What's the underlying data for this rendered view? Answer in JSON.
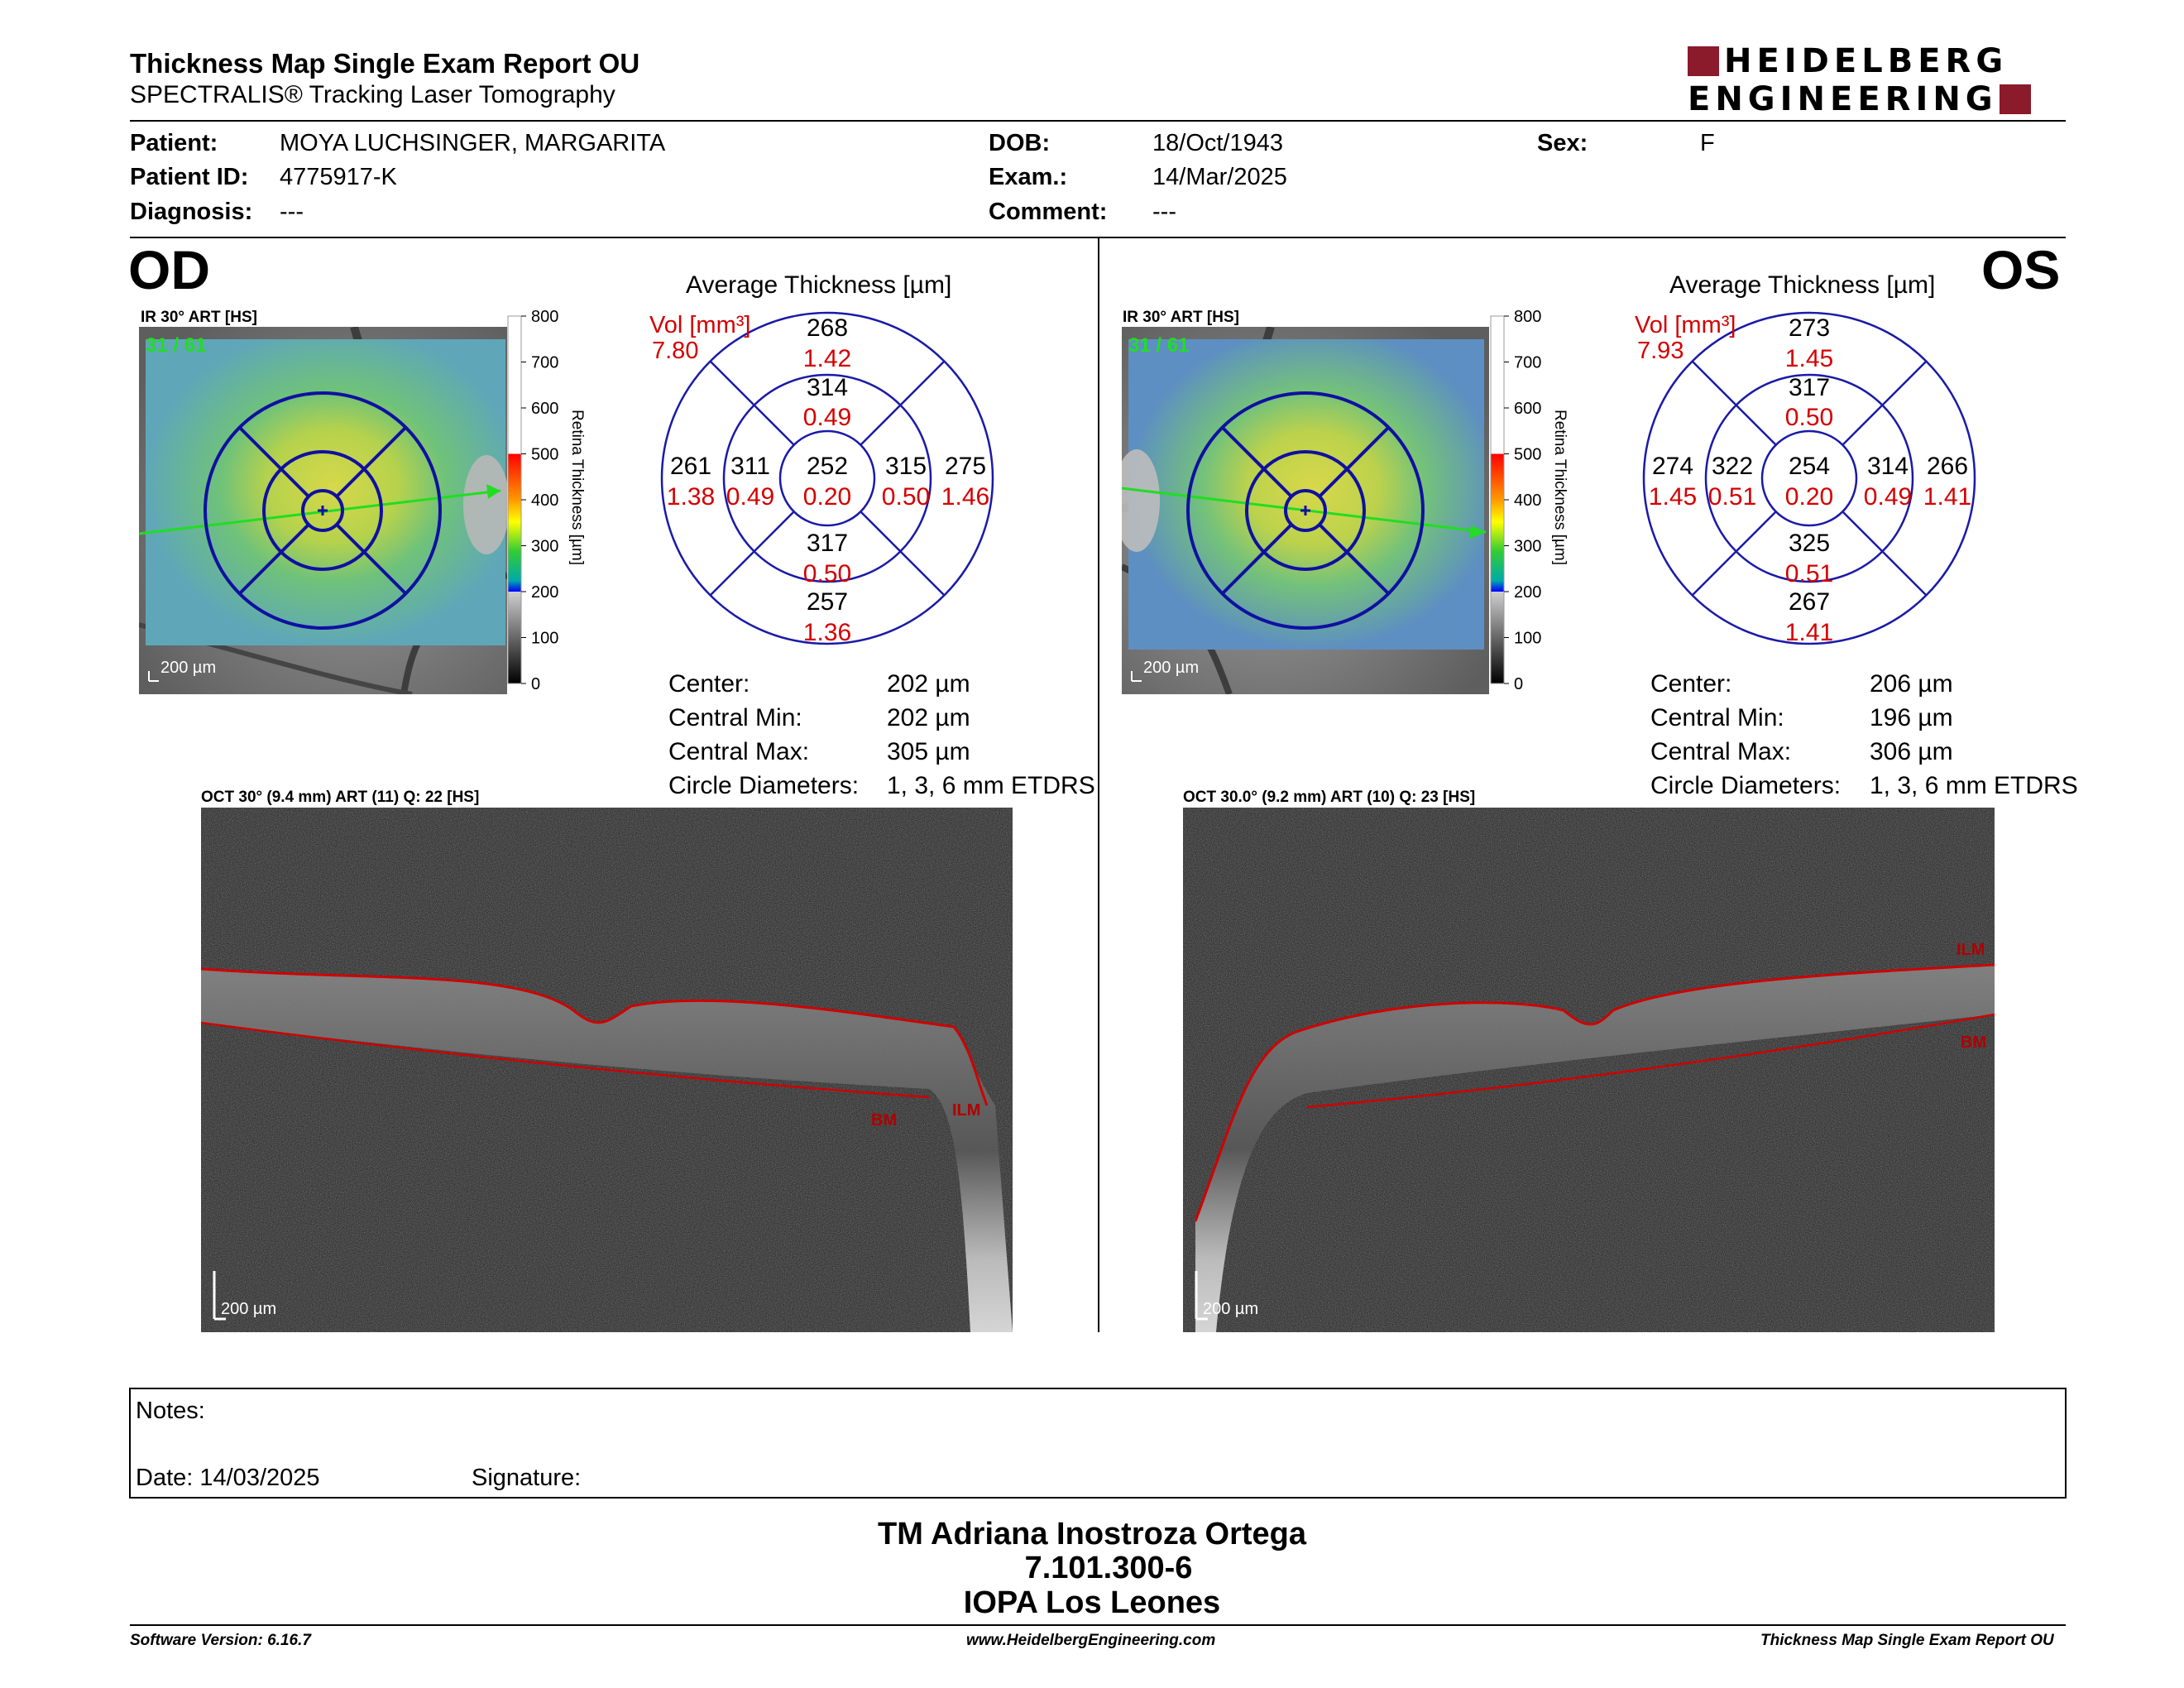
{
  "header": {
    "title": "Thickness Map Single Exam Report OU",
    "subtitle": "SPECTRALIS® Tracking Laser Tomography",
    "logo_line1": "HEIDELBERG",
    "logo_line2": "ENGINEERING",
    "brand_color": "#8b1a2b"
  },
  "patient": {
    "patient_label": "Patient:",
    "patient_value": "MOYA LUCHSINGER, MARGARITA",
    "id_label": "Patient ID:",
    "id_value": "4775917-K",
    "diagnosis_label": "Diagnosis:",
    "diagnosis_value": "---",
    "dob_label": "DOB:",
    "dob_value": "18/Oct/1943",
    "exam_label": "Exam.:",
    "exam_value": "14/Mar/2025",
    "comment_label": "Comment:",
    "comment_value": "---",
    "sex_label": "Sex:",
    "sex_value": "F"
  },
  "colorbar": {
    "ticks": [
      "800",
      "700",
      "600",
      "500",
      "400",
      "300",
      "200",
      "100",
      "0"
    ],
    "label": "Retina Thickness [µm]"
  },
  "od": {
    "eye": "OD",
    "ir_caption": "IR 30° ART [HS]",
    "ir_quality": "31 / 61",
    "ir_scale": "200 µm",
    "avg_title": "Average Thickness [µm]",
    "vol_label": "Vol [mm³]",
    "vol_value": "7.80",
    "sectors": {
      "outer_sup": [
        "268",
        "1.42"
      ],
      "inner_sup": [
        "314",
        "0.49"
      ],
      "outer_temp": [
        "261",
        "1.38"
      ],
      "inner_temp": [
        "311",
        "0.49"
      ],
      "center": [
        "252",
        "0.20"
      ],
      "inner_nas": [
        "315",
        "0.50"
      ],
      "outer_nas": [
        "275",
        "1.46"
      ],
      "inner_inf": [
        "317",
        "0.50"
      ],
      "outer_inf": [
        "257",
        "1.36"
      ]
    },
    "stats": [
      {
        "label": "Center:",
        "value": "202 µm"
      },
      {
        "label": "Central Min:",
        "value": "202 µm"
      },
      {
        "label": "Central Max:",
        "value": "305 µm"
      },
      {
        "label": "Circle Diameters:",
        "value": "1, 3, 6 mm ETDRS"
      }
    ],
    "oct_caption": "OCT 30° (9.4 mm) ART (11) Q: 22 [HS]",
    "oct_scale": "200 µm",
    "ilm": "ILM",
    "bm": "BM"
  },
  "os": {
    "eye": "OS",
    "ir_caption": "IR 30° ART [HS]",
    "ir_quality": "31 / 61",
    "ir_scale": "200 µm",
    "avg_title": "Average Thickness [µm]",
    "vol_label": "Vol [mm³]",
    "vol_value": "7.93",
    "sectors": {
      "outer_sup": [
        "273",
        "1.45"
      ],
      "inner_sup": [
        "317",
        "0.50"
      ],
      "outer_temp": [
        "274",
        "1.45"
      ],
      "inner_temp": [
        "322",
        "0.51"
      ],
      "center": [
        "254",
        "0.20"
      ],
      "inner_nas": [
        "314",
        "0.49"
      ],
      "outer_nas": [
        "266",
        "1.41"
      ],
      "inner_inf": [
        "325",
        "0.51"
      ],
      "outer_inf": [
        "267",
        "1.41"
      ]
    },
    "stats": [
      {
        "label": "Center:",
        "value": "206 µm"
      },
      {
        "label": "Central Min:",
        "value": "196 µm"
      },
      {
        "label": "Central Max:",
        "value": "306 µm"
      },
      {
        "label": "Circle Diameters:",
        "value": "1, 3, 6 mm ETDRS"
      }
    ],
    "oct_caption": "OCT 30.0° (9.2 mm) ART (10) Q: 23 [HS]",
    "oct_scale": "200 µm",
    "ilm": "ILM",
    "bm": "BM"
  },
  "notes": {
    "notes_label": "Notes:",
    "date_label": "Date: 14/03/2025",
    "signature_label": "Signature:"
  },
  "signature": {
    "line1": "TM Adriana Inostroza Ortega",
    "line2": "7.101.300-6",
    "line3": "IOPA Los Leones"
  },
  "footer": {
    "software": "Software Version: 6.16.7",
    "website": "www.HeidelbergEngineering.com",
    "report": "Thickness Map Single Exam Report OU"
  }
}
